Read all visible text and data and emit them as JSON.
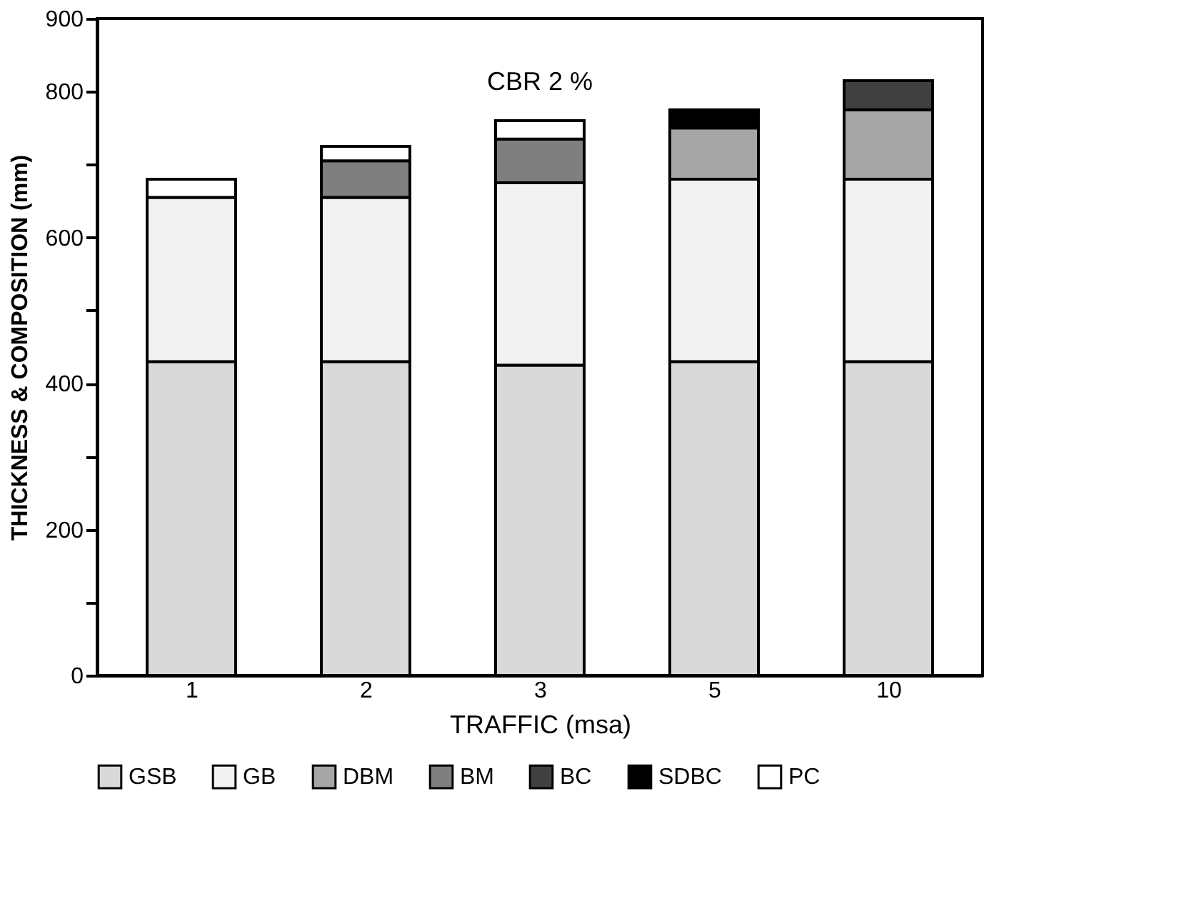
{
  "chart_data": {
    "type": "bar",
    "stacked": true,
    "annotations": [
      "CBR 2 %"
    ],
    "xlabel": "TRAFFIC (msa)",
    "ylabel": "THICKNESS & COMPOSITION (mm)",
    "categories": [
      "1",
      "2",
      "3",
      "5",
      "10"
    ],
    "series": [
      {
        "name": "GSB",
        "color": "#d9d9d9",
        "values": [
          430,
          430,
          425,
          430,
          430
        ]
      },
      {
        "name": "GB",
        "color": "#f2f2f2",
        "values": [
          225,
          225,
          250,
          250,
          250
        ]
      },
      {
        "name": "DBM",
        "color": "#a6a6a6",
        "values": [
          null,
          null,
          null,
          70,
          95
        ]
      },
      {
        "name": "BM",
        "color": "#7f7f7f",
        "values": [
          null,
          50,
          60,
          null,
          null
        ]
      },
      {
        "name": "BC",
        "color": "#404040",
        "values": [
          null,
          null,
          null,
          null,
          40
        ]
      },
      {
        "name": "SDBC",
        "color": "#000000",
        "values": [
          null,
          null,
          null,
          25,
          null
        ]
      },
      {
        "name": "PC",
        "color": "#ffffff",
        "values": [
          25,
          20,
          25,
          null,
          null
        ]
      }
    ],
    "ylim": [
      0,
      900
    ],
    "yticks": [
      0,
      {
        "value": 100,
        "label": null
      },
      200,
      {
        "value": 300,
        "label": null
      },
      400,
      {
        "value": 500,
        "label": null
      },
      600,
      {
        "value": 700,
        "label": null
      },
      800,
      900
    ],
    "grid": false,
    "legend": "bottom"
  }
}
